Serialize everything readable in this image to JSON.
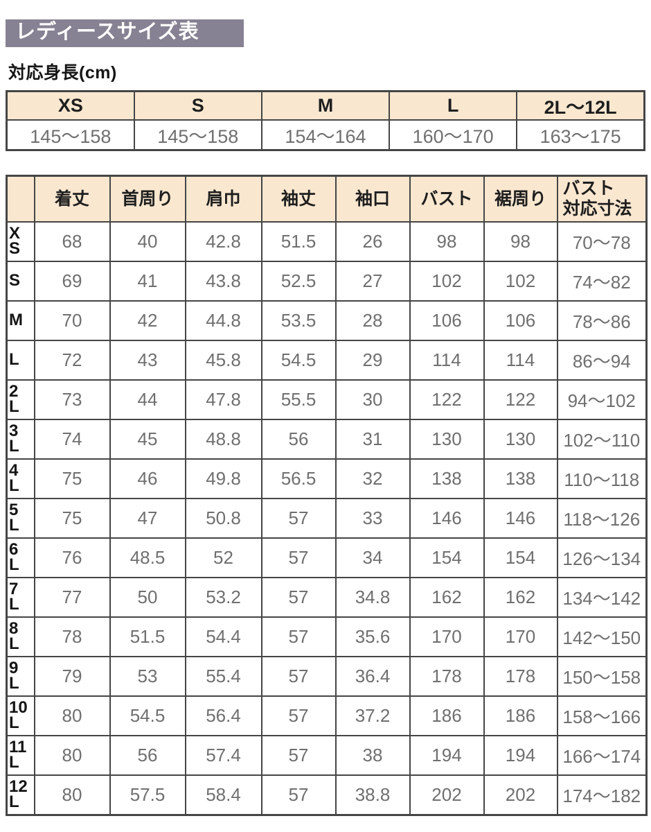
{
  "title": "レディースサイズ表",
  "height_table": {
    "heading": "対応身長(cm)",
    "sizes": [
      "XS",
      "S",
      "M",
      "L",
      "2L～12L"
    ],
    "ranges": [
      "145～158",
      "145～158",
      "154～164",
      "160～170",
      "163～175"
    ]
  },
  "size_table": {
    "columns": [
      "着丈",
      "首周り",
      "肩巾",
      "袖丈",
      "袖口",
      "バスト",
      "裾周り",
      "バスト\n対応寸法"
    ],
    "rows": [
      {
        "size": "XS",
        "values": [
          "68",
          "40",
          "42.8",
          "51.5",
          "26",
          "98",
          "98",
          "70～78"
        ]
      },
      {
        "size": "S",
        "values": [
          "69",
          "41",
          "43.8",
          "52.5",
          "27",
          "102",
          "102",
          "74～82"
        ]
      },
      {
        "size": "M",
        "values": [
          "70",
          "42",
          "44.8",
          "53.5",
          "28",
          "106",
          "106",
          "78～86"
        ]
      },
      {
        "size": "L",
        "values": [
          "72",
          "43",
          "45.8",
          "54.5",
          "29",
          "114",
          "114",
          "86～94"
        ]
      },
      {
        "size": "2L",
        "values": [
          "73",
          "44",
          "47.8",
          "55.5",
          "30",
          "122",
          "122",
          "94～102"
        ]
      },
      {
        "size": "3L",
        "values": [
          "74",
          "45",
          "48.8",
          "56",
          "31",
          "130",
          "130",
          "102～110"
        ]
      },
      {
        "size": "4L",
        "values": [
          "75",
          "46",
          "49.8",
          "56.5",
          "32",
          "138",
          "138",
          "110～118"
        ]
      },
      {
        "size": "5L",
        "values": [
          "75",
          "47",
          "50.8",
          "57",
          "33",
          "146",
          "146",
          "118～126"
        ]
      },
      {
        "size": "6L",
        "values": [
          "76",
          "48.5",
          "52",
          "57",
          "34",
          "154",
          "154",
          "126～134"
        ]
      },
      {
        "size": "7L",
        "values": [
          "77",
          "50",
          "53.2",
          "57",
          "34.8",
          "162",
          "162",
          "134～142"
        ]
      },
      {
        "size": "8L",
        "values": [
          "78",
          "51.5",
          "54.4",
          "57",
          "35.6",
          "170",
          "170",
          "142～150"
        ]
      },
      {
        "size": "9L",
        "values": [
          "79",
          "53",
          "55.4",
          "57",
          "36.4",
          "178",
          "178",
          "150～158"
        ]
      },
      {
        "size": "10L",
        "values": [
          "80",
          "54.5",
          "56.4",
          "57",
          "37.2",
          "186",
          "186",
          "158～166"
        ]
      },
      {
        "size": "11L",
        "values": [
          "80",
          "56",
          "57.4",
          "57",
          "38",
          "194",
          "194",
          "166～174"
        ]
      },
      {
        "size": "12L",
        "values": [
          "80",
          "57.5",
          "58.4",
          "57",
          "38.8",
          "202",
          "202",
          "174～182"
        ]
      }
    ]
  },
  "colors": {
    "banner_bg": "#868293",
    "header_bg": "#f9e7d0",
    "border": "#454545",
    "value_text": "#6f6f6f",
    "label_text": "#161616"
  }
}
